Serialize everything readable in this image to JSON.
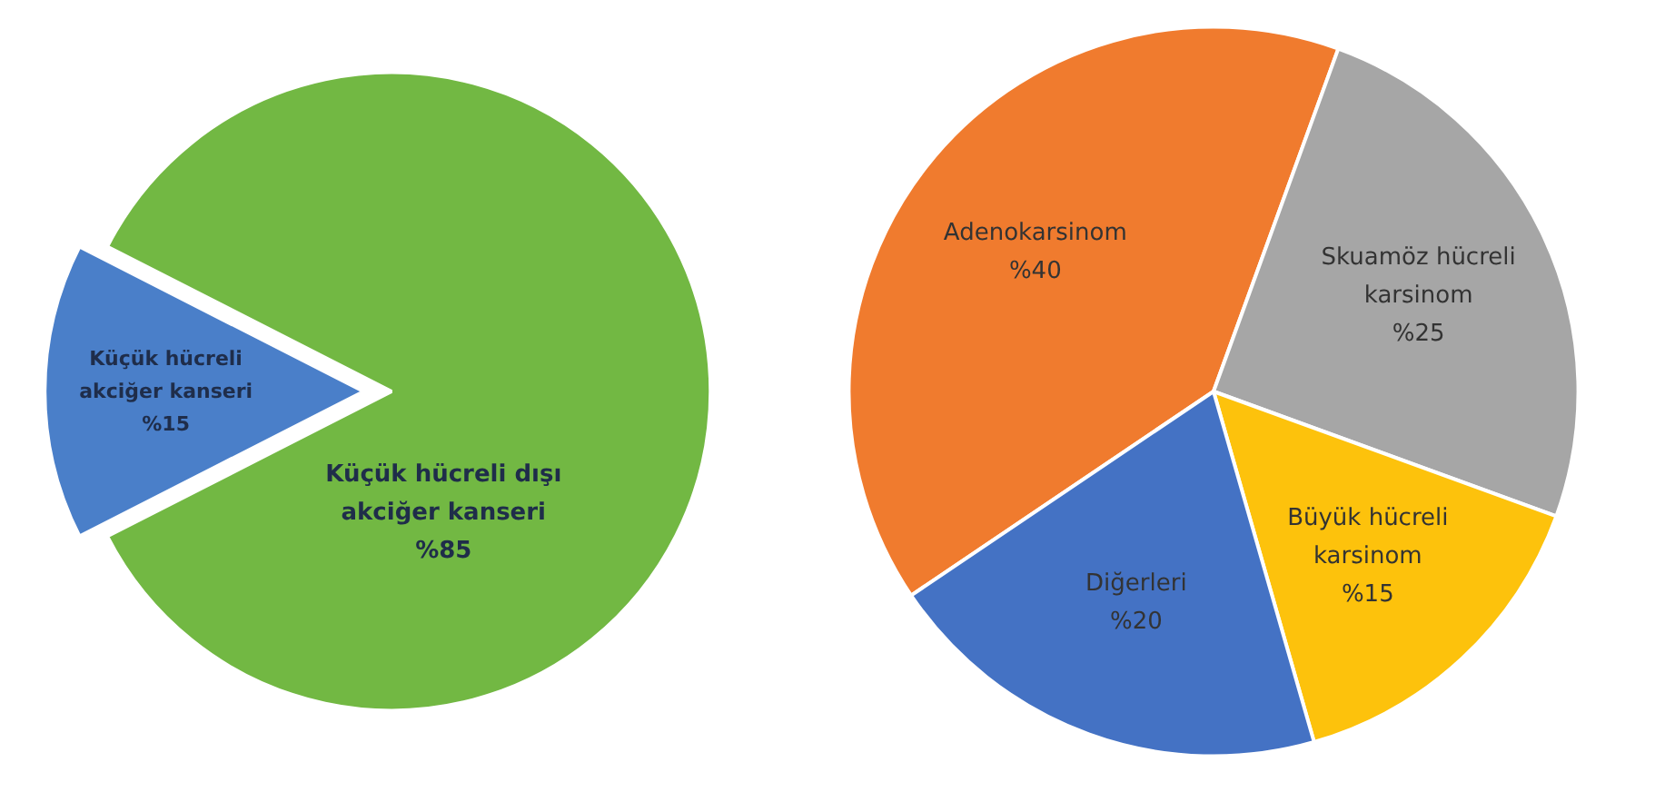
{
  "chart_data": [
    {
      "type": "pie",
      "categories": [
        "Küçük hücreli akciğer kanseri",
        "Küçük hücreli dışı akciğer kanseri"
      ],
      "values": [
        15,
        85
      ],
      "colors": [
        "#4a7fc9",
        "#72b843"
      ],
      "value_labels": [
        "%15",
        "%85"
      ]
    },
    {
      "type": "pie",
      "categories": [
        "Adenokarsinom",
        "Skuamöz hücreli karsinom",
        "Büyük hücreli karsinom",
        "Diğerleri"
      ],
      "values": [
        40,
        25,
        15,
        20
      ],
      "colors": [
        "#f07b2e",
        "#a6a6a6",
        "#fdc20c",
        "#4472c4"
      ],
      "value_labels": [
        "%40",
        "%25",
        "%15",
        "%20"
      ]
    }
  ]
}
